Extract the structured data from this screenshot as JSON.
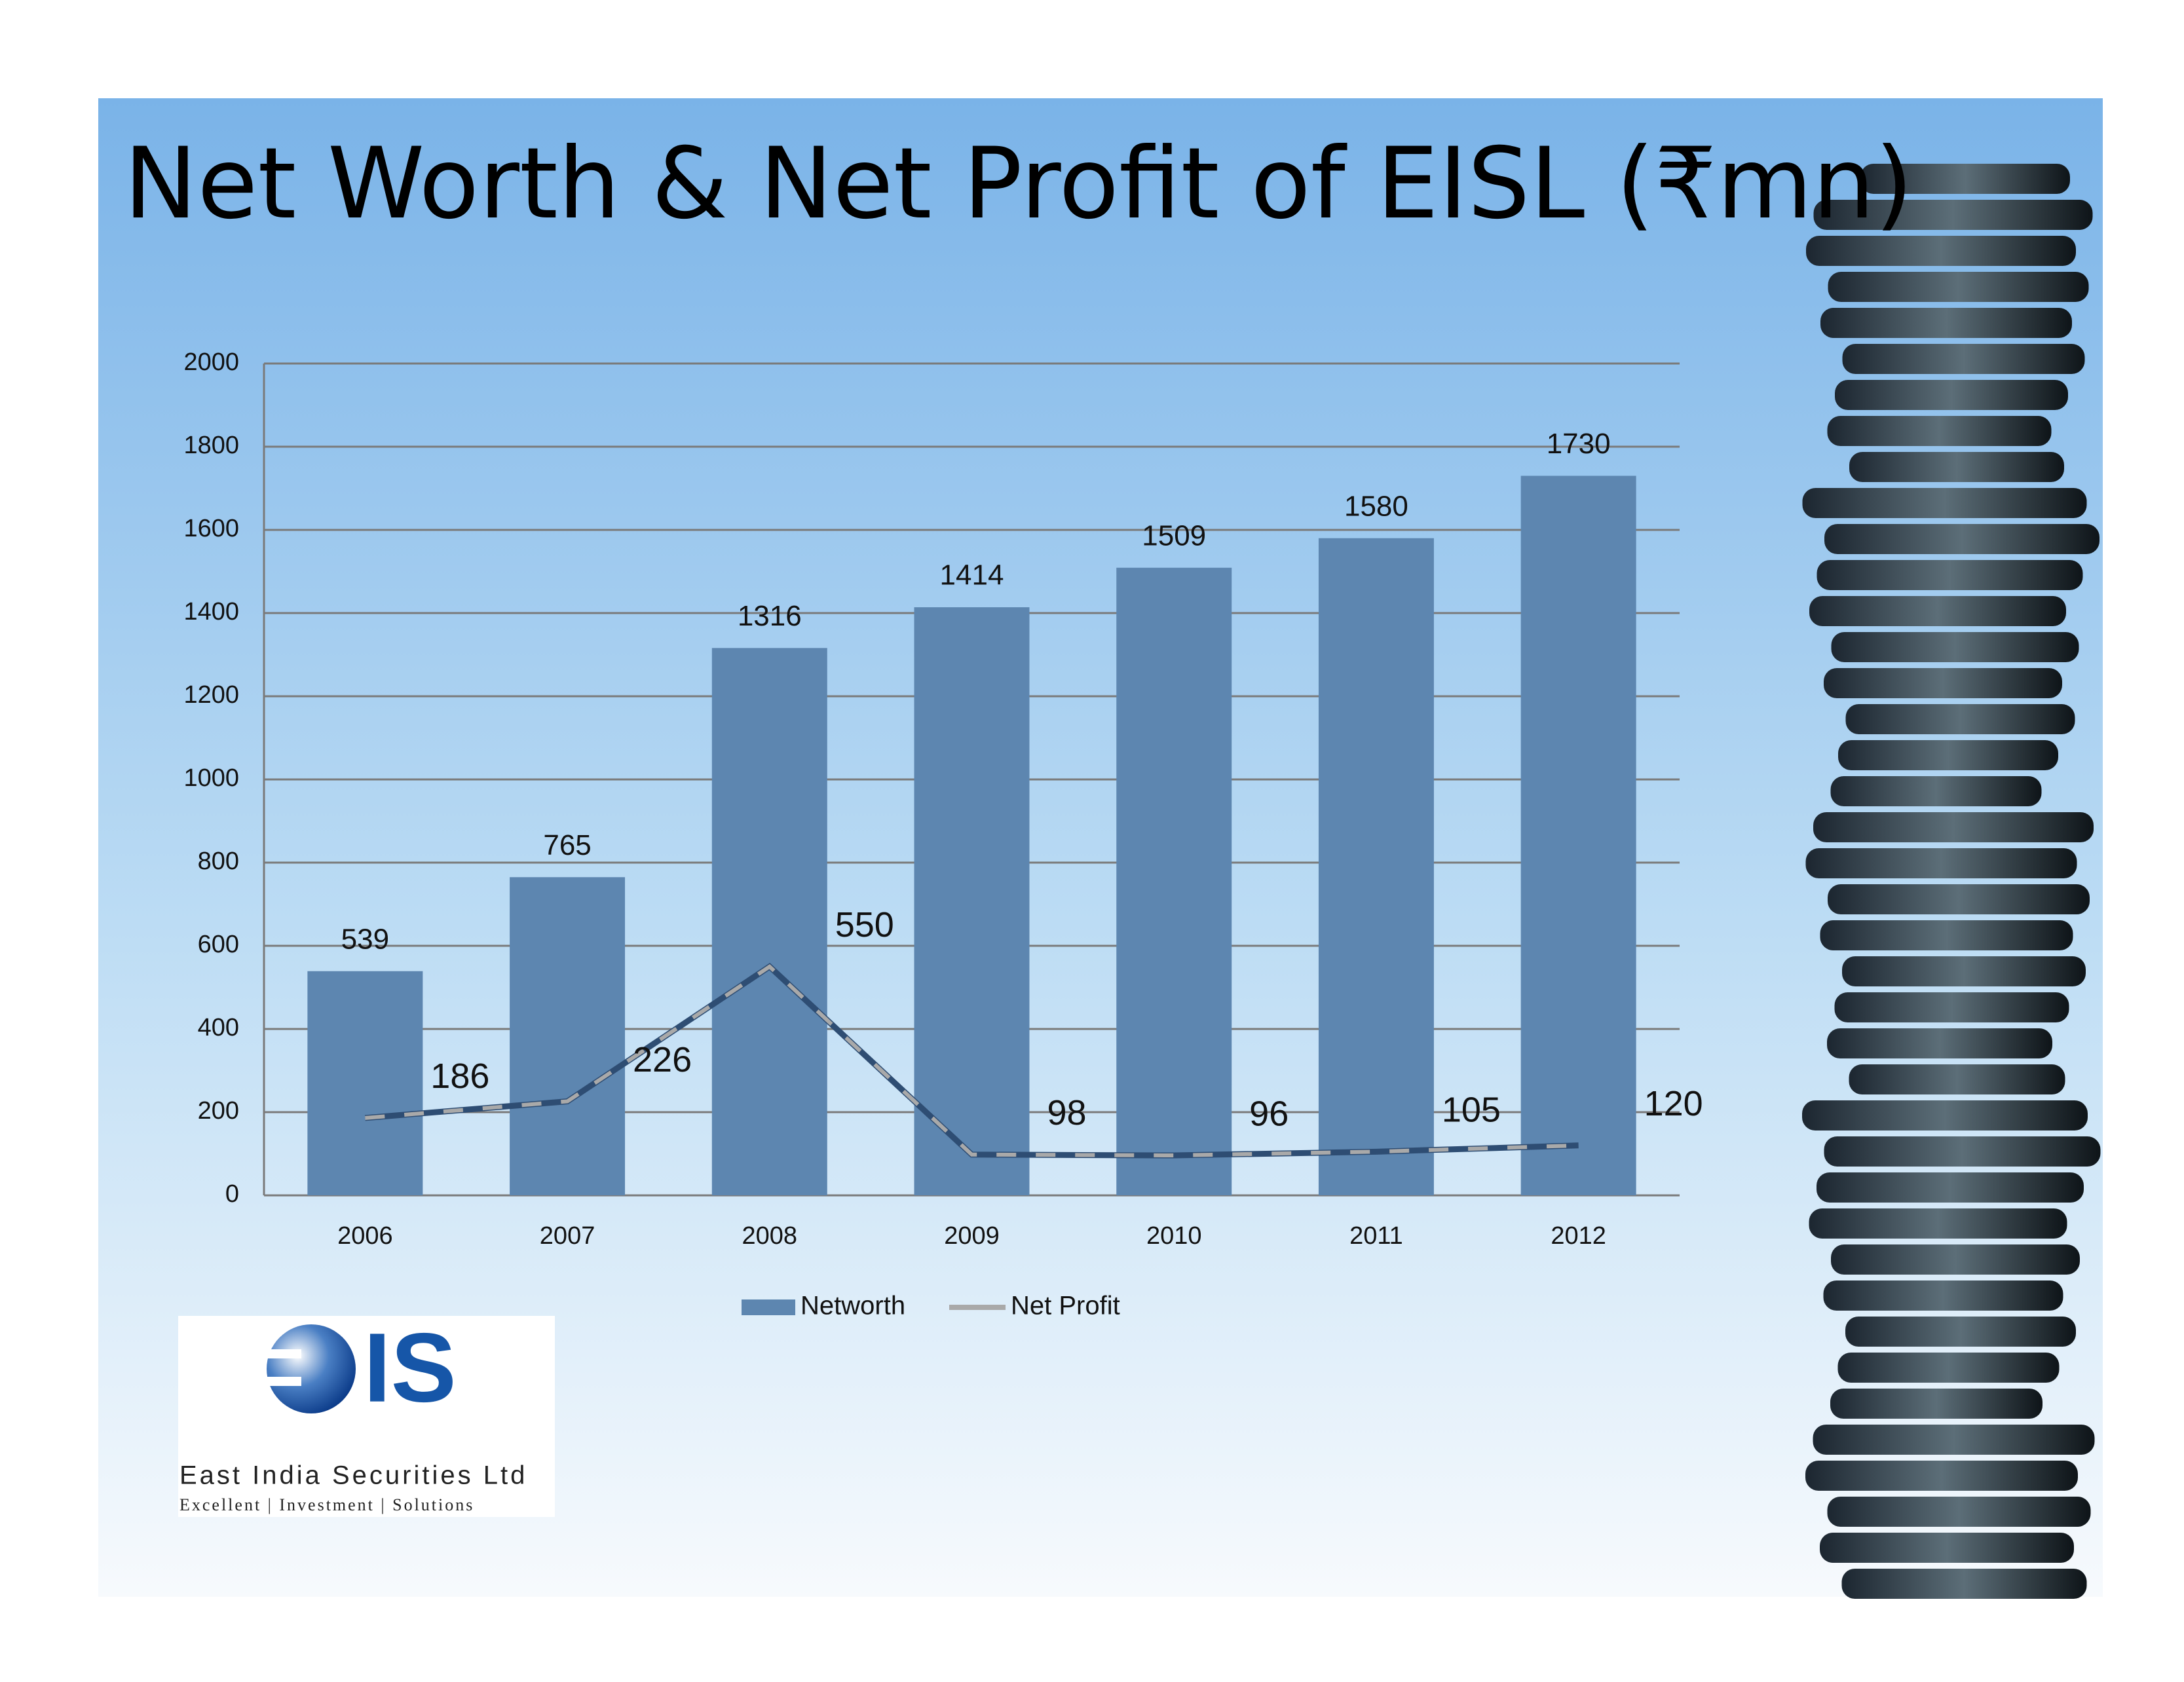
{
  "chart_data": {
    "type": "bar_line",
    "title": "Net Worth & Net Profit of EISL (₹mn)",
    "categories": [
      "2006",
      "2007",
      "2008",
      "2009",
      "2010",
      "2011",
      "2012"
    ],
    "series": [
      {
        "name": "Networth",
        "type": "bar",
        "color": "#5d86b0",
        "values": [
          539,
          765,
          1316,
          1414,
          1509,
          1580,
          1730
        ]
      },
      {
        "name": "Net Profit",
        "type": "line",
        "color": "#2e4d73",
        "values": [
          186,
          226,
          550,
          98,
          96,
          105,
          120
        ]
      }
    ],
    "ylim": [
      0,
      2000
    ],
    "yticks": [
      0,
      200,
      400,
      600,
      800,
      1000,
      1200,
      1400,
      1600,
      1800,
      2000
    ],
    "grid": true,
    "legend": "bottom"
  },
  "logo": {
    "mark": "IS",
    "name": "East India Securities Ltd",
    "tagline": "Excellent | Investment | Solutions"
  }
}
